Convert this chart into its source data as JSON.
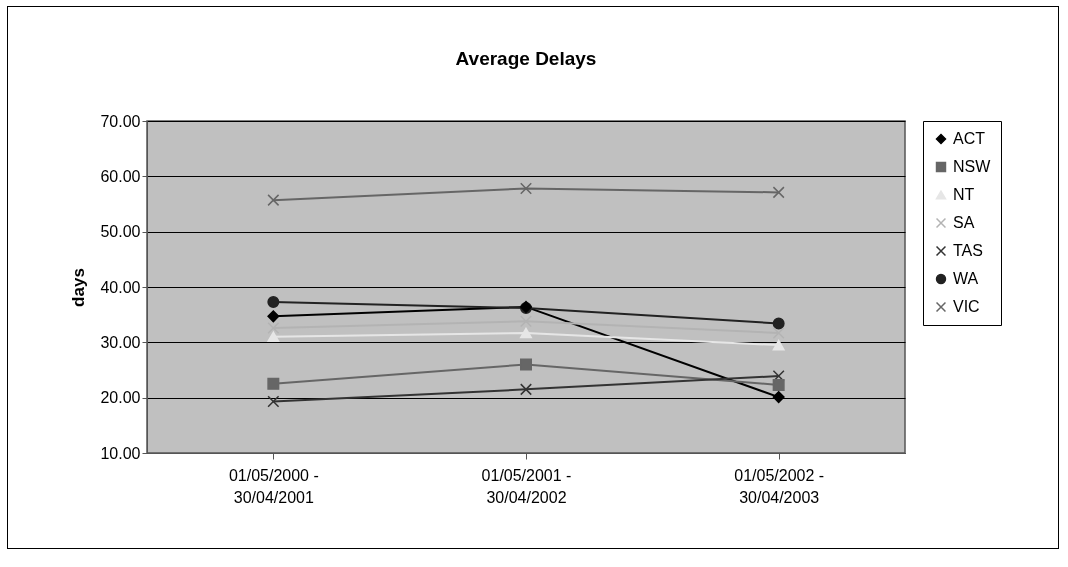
{
  "chart_data": {
    "type": "line",
    "title": "Average Delays",
    "ylabel": "days",
    "categories": [
      "01/05/2000 - 30/04/2001",
      "01/05/2001 - 30/04/2002",
      "01/05/2002 - 30/04/2003"
    ],
    "series": [
      {
        "name": "ACT",
        "color": "#000000",
        "marker": "diamond",
        "values": [
          34.7,
          36.4,
          20.1
        ]
      },
      {
        "name": "NSW",
        "color": "#666666",
        "marker": "square",
        "values": [
          22.5,
          26.0,
          22.3
        ]
      },
      {
        "name": "NT",
        "color": "#e6e6e6",
        "marker": "triangle",
        "values": [
          31.0,
          31.7,
          29.5
        ]
      },
      {
        "name": "SA",
        "color": "#b3b3b3",
        "marker": "cross",
        "values": [
          32.6,
          33.8,
          31.7
        ]
      },
      {
        "name": "TAS",
        "color": "#333333",
        "marker": "cross",
        "values": [
          19.3,
          21.5,
          23.9
        ]
      },
      {
        "name": "WA",
        "color": "#222222",
        "marker": "circle",
        "values": [
          37.3,
          36.2,
          33.4
        ]
      },
      {
        "name": "VIC",
        "color": "#666666",
        "marker": "cross",
        "values": [
          55.7,
          57.8,
          57.1
        ]
      }
    ],
    "ylim": [
      10,
      70
    ],
    "yticks": [
      {
        "value": 10,
        "label": "10.00"
      },
      {
        "value": 20,
        "label": "20.00"
      },
      {
        "value": 30,
        "label": "30.00"
      },
      {
        "value": 40,
        "label": "40.00"
      },
      {
        "value": 50,
        "label": "50.00"
      },
      {
        "value": 60,
        "label": "60.00"
      },
      {
        "value": 70,
        "label": "70.00"
      }
    ],
    "grid": "y",
    "legend": "right"
  }
}
